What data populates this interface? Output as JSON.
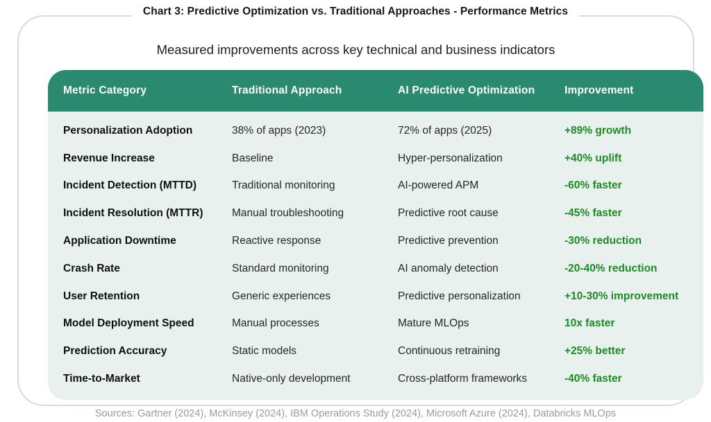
{
  "header": {
    "title": "Chart 3: Predictive Optimization vs. Traditional Approaches - Performance Metrics",
    "subtitle": "Measured improvements across key technical and business indicators"
  },
  "chart_data": {
    "type": "table",
    "title": "Chart 3: Predictive Optimization vs. Traditional Approaches - Performance Metrics",
    "subtitle": "Measured improvements across key technical and business indicators",
    "columns": [
      "Metric Category",
      "Traditional Approach",
      "AI Predictive Optimization",
      "Improvement"
    ],
    "rows": [
      {
        "metric": "Personalization Adoption",
        "traditional": "38% of apps (2023)",
        "ai": "72% of apps (2025)",
        "improvement": "+89% growth"
      },
      {
        "metric": "Revenue Increase",
        "traditional": "Baseline",
        "ai": "Hyper-personalization",
        "improvement": "+40% uplift"
      },
      {
        "metric": "Incident Detection (MTTD)",
        "traditional": "Traditional monitoring",
        "ai": "AI-powered APM",
        "improvement": "-60% faster"
      },
      {
        "metric": "Incident Resolution (MTTR)",
        "traditional": "Manual troubleshooting",
        "ai": "Predictive root cause",
        "improvement": "-45% faster"
      },
      {
        "metric": "Application Downtime",
        "traditional": "Reactive response",
        "ai": "Predictive prevention",
        "improvement": "-30% reduction"
      },
      {
        "metric": "Crash Rate",
        "traditional": "Standard monitoring",
        "ai": "AI anomaly detection",
        "improvement": "-20-40% reduction"
      },
      {
        "metric": "User Retention",
        "traditional": "Generic experiences",
        "ai": "Predictive personalization",
        "improvement": "+10-30% improvement"
      },
      {
        "metric": "Model Deployment Speed",
        "traditional": "Manual processes",
        "ai": "Mature MLOps",
        "improvement": "10x faster"
      },
      {
        "metric": "Prediction Accuracy",
        "traditional": "Static models",
        "ai": "Continuous retraining",
        "improvement": "+25% better"
      },
      {
        "metric": "Time-to-Market",
        "traditional": "Native-only development",
        "ai": "Cross-platform frameworks",
        "improvement": "-40% faster"
      }
    ],
    "legend_position": "none",
    "grid": false
  },
  "footer": {
    "sources": "Sources: Gartner (2024), McKinsey (2024), IBM Operations Study (2024), Microsoft Azure (2024), Databricks MLOps"
  },
  "colors": {
    "header_bg": "#2A8A70",
    "body_bg": "#E8F1EE",
    "improvement_green": "#1D8A24",
    "card_border": "#D9D9D9",
    "sources_gray": "#9B9B9B"
  }
}
